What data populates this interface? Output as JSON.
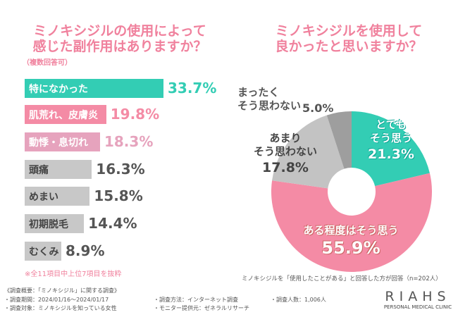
{
  "left": {
    "title_line1": "ミノキシジルの使用によって",
    "title_line2": "感じた副作用はありますか？",
    "subtitle": "（複数回答可）",
    "note": "※全11項目中上位7項目を抜粋"
  },
  "right": {
    "title_line1": "ミノキシジルを使用して",
    "title_line2": "良かったと思いますか？",
    "footnote": "ミノキシジルを「使用したことがある」と回答した方が回答（n=202人）"
  },
  "chart_data": [
    {
      "type": "bar",
      "orientation": "horizontal",
      "categories": [
        "特になかった",
        "肌荒れ、皮膚炎",
        "動悸・息切れ",
        "頭痛",
        "めまい",
        "初期脱毛",
        "むくみ"
      ],
      "values": [
        33.7,
        19.8,
        18.3,
        16.3,
        15.8,
        14.4,
        8.9
      ],
      "value_labels": [
        "33.7%",
        "19.8%",
        "18.3%",
        "16.3%",
        "15.8%",
        "14.4%",
        "8.9%"
      ],
      "colors": [
        "#33cdb4",
        "#f48ba5",
        "#e6a3bd",
        "#c8c8c8",
        "#c8c8c8",
        "#c8c8c8",
        "#c8c8c8"
      ],
      "xlim": [
        0,
        40
      ]
    },
    {
      "type": "pie",
      "donut": true,
      "labels": [
        [
          "とても",
          "そう思う"
        ],
        [
          "ある程度はそう思う"
        ],
        [
          "あまり",
          "そう思わない"
        ],
        [
          "まったく",
          "そう思わない"
        ]
      ],
      "values": [
        21.3,
        55.9,
        17.8,
        5.0
      ],
      "value_labels": [
        "21.3%",
        "55.9%",
        "17.8%",
        "5.0%"
      ],
      "colors": [
        "#33cdb4",
        "#f48ba5",
        "#c3c3c3",
        "#9e9e9e"
      ]
    }
  ],
  "footer": {
    "heading": "《調査概要：「ミノキシジル」に関する調査》",
    "period": "・調査期間：2024/01/16〜2024/01/17",
    "target": "・調査対象：ミノキシジルを知っている女性",
    "method": "・調査方法：インターネット調査",
    "provider": "・モニター提供元：ゼネラルリサーチ",
    "count": "・調査人数：1,006人"
  },
  "logo": {
    "name": "RIAHS",
    "tagline": "PERSONAL MEDICAL CLINIC"
  }
}
